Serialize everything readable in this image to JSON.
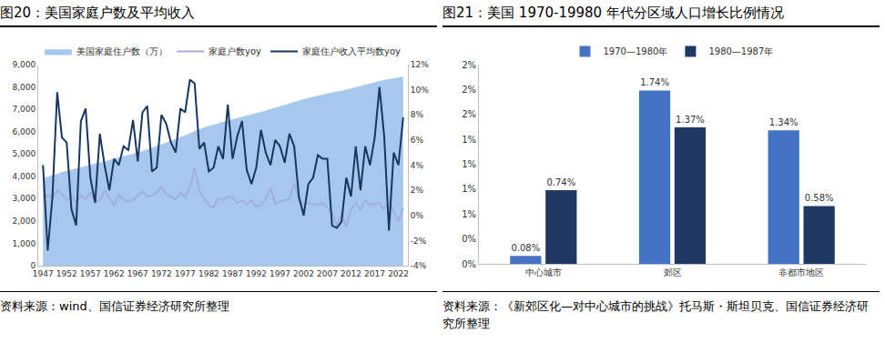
{
  "chart_data": [
    {
      "type": "line",
      "title": "图20：美国家庭户数及平均收入",
      "source": "资料来源：wind、国信证券经济研究所整理",
      "x": [
        1947,
        1948,
        1949,
        1950,
        1951,
        1952,
        1953,
        1954,
        1955,
        1956,
        1957,
        1958,
        1959,
        1960,
        1961,
        1962,
        1963,
        1964,
        1965,
        1966,
        1967,
        1968,
        1969,
        1970,
        1971,
        1972,
        1973,
        1974,
        1975,
        1976,
        1977,
        1978,
        1979,
        1980,
        1981,
        1982,
        1983,
        1984,
        1985,
        1986,
        1987,
        1988,
        1989,
        1990,
        1991,
        1992,
        1993,
        1994,
        1995,
        1996,
        1997,
        1998,
        1999,
        2000,
        2001,
        2002,
        2003,
        2004,
        2005,
        2006,
        2007,
        2008,
        2009,
        2010,
        2011,
        2012,
        2013,
        2014,
        2015,
        2016,
        2017,
        2018,
        2019,
        2020,
        2021,
        2022,
        2023
      ],
      "series": [
        {
          "name": "美国家庭住户数（万）",
          "type": "area",
          "color": "#a6c8ec",
          "axis": "y",
          "values": [
            3900,
            3960,
            4020,
            4100,
            4180,
            4230,
            4280,
            4330,
            4390,
            4450,
            4500,
            4550,
            4600,
            4660,
            4720,
            4770,
            4830,
            4880,
            4930,
            4990,
            5050,
            5120,
            5190,
            5260,
            5340,
            5420,
            5500,
            5580,
            5660,
            5740,
            5820,
            5920,
            6020,
            6110,
            6180,
            6240,
            6290,
            6360,
            6430,
            6490,
            6550,
            6610,
            6670,
            6720,
            6770,
            6820,
            6870,
            6930,
            6990,
            7050,
            7110,
            7170,
            7230,
            7300,
            7370,
            7440,
            7500,
            7550,
            7600,
            7660,
            7720,
            7760,
            7790,
            7820,
            7860,
            7920,
            7980,
            8040,
            8100,
            8160,
            8210,
            8260,
            8310,
            8340,
            8380,
            8420,
            8450
          ]
        },
        {
          "name": "家庭户数yoy",
          "type": "line",
          "color": "#a3aee0",
          "axis": "y2",
          "values": [
            1.5,
            1.6,
            1.4,
            2.0,
            1.7,
            1.2,
            1.5,
            1.0,
            1.6,
            1.3,
            1.8,
            1.1,
            1.2,
            2.0,
            1.4,
            0.8,
            1.6,
            1.3,
            1.1,
            1.2,
            1.6,
            1.9,
            1.5,
            1.6,
            1.8,
            2.3,
            1.7,
            1.5,
            1.3,
            1.8,
            1.5,
            2.2,
            3.8,
            2.0,
            1.3,
            0.8,
            0.6,
            1.4,
            1.2,
            1.5,
            1.4,
            1.0,
            1.2,
            0.9,
            1.2,
            0.7,
            0.8,
            1.3,
            2.2,
            0.9,
            1.1,
            1.2,
            1.3,
            2.6,
            1.2,
            0.9,
            1.0,
            0.9,
            0.8,
            1.0,
            0.6,
            0.3,
            -0.8,
            0.2,
            -0.9,
            0.5,
            1.0,
            0.4,
            1.2,
            0.8,
            0.9,
            1.0,
            0.5,
            1.2,
            0.3,
            -0.5,
            0.6
          ]
        },
        {
          "name": "家庭住户收入平均数yoy",
          "type": "line",
          "color": "#17375e",
          "axis": "y2",
          "values": [
            4.0,
            -2.8,
            1.5,
            9.8,
            6.2,
            5.8,
            0.5,
            -0.8,
            7.5,
            8.5,
            3.0,
            1.0,
            6.5,
            4.0,
            2.0,
            4.5,
            4.0,
            5.5,
            5.2,
            7.6,
            4.3,
            8.2,
            8.7,
            3.5,
            3.8,
            8.0,
            7.3,
            5.8,
            5.0,
            8.5,
            8.2,
            10.8,
            10.5,
            5.3,
            5.8,
            3.5,
            3.8,
            5.5,
            4.5,
            8.8,
            4.5,
            6.3,
            7.5,
            3.6,
            2.5,
            3.8,
            6.8,
            5.0,
            4.0,
            6.0,
            5.5,
            4.2,
            6.5,
            5.5,
            1.5,
            0.0,
            2.5,
            3.0,
            4.8,
            4.5,
            4.5,
            -0.8,
            -1.0,
            -0.5,
            3.0,
            1.5,
            5.5,
            2.0,
            5.5,
            4.0,
            6.2,
            10.2,
            6.3,
            -1.2,
            5.0,
            4.0,
            7.8
          ]
        }
      ],
      "xlim": [
        1946,
        2024
      ],
      "xticks": [
        1947,
        1952,
        1957,
        1962,
        1967,
        1972,
        1977,
        1982,
        1987,
        1992,
        1997,
        2002,
        2007,
        2012,
        2017,
        2022
      ],
      "ylim": [
        0,
        9000
      ],
      "yticks": [
        0,
        {
          "value": 1000,
          "label": "1,000"
        },
        {
          "value": 2000,
          "label": "2,000"
        },
        {
          "value": 3000,
          "label": "3,000"
        },
        {
          "value": 4000,
          "label": "4,000"
        },
        {
          "value": 5000,
          "label": "5,000"
        },
        {
          "value": 6000,
          "label": "6,000"
        },
        {
          "value": 7000,
          "label": "7,000"
        },
        {
          "value": 8000,
          "label": "8,000"
        },
        {
          "value": 9000,
          "label": "9,000"
        }
      ],
      "y2lim": [
        -4,
        12
      ],
      "y2ticks": [
        {
          "value": -4,
          "label": "-4%"
        },
        {
          "value": -2,
          "label": "-2%"
        },
        {
          "value": 0,
          "label": "0%"
        },
        {
          "value": 2,
          "label": "2%"
        },
        {
          "value": 4,
          "label": "4%"
        },
        {
          "value": 6,
          "label": "6%"
        },
        {
          "value": 8,
          "label": "8%"
        },
        {
          "value": 10,
          "label": "10%"
        },
        {
          "value": 12,
          "label": "12%"
        }
      ],
      "grid": false,
      "legend": "top"
    },
    {
      "type": "bar",
      "title": "图21：美国 1970-19980 年代分区域人口增长比例情况",
      "source": "资料来源：《新郊区化—对中心城市的挑战》托马斯・斯坦贝克、国信证券经济研究所整理",
      "categories": [
        "中心城市",
        "郊区",
        "非都市地区"
      ],
      "series": [
        {
          "name": "1970—1980年",
          "color": "#4472c4",
          "values": [
            0.08,
            1.74,
            1.34
          ],
          "value_labels": [
            "0.08%",
            "1.74%",
            "1.34%"
          ]
        },
        {
          "name": "1980—1987年",
          "color": "#1f3864",
          "values": [
            0.74,
            1.37,
            0.58
          ],
          "value_labels": [
            "0.74%",
            "1.37%",
            "0.58%"
          ]
        }
      ],
      "ylim": [
        0,
        2
      ],
      "yticks": [
        {
          "value": 0,
          "label": "0%"
        },
        {
          "value": 0.25,
          "label": "0%"
        },
        {
          "value": 0.5,
          "label": "1%"
        },
        {
          "value": 0.75,
          "label": "1%"
        },
        {
          "value": 1,
          "label": "1%"
        },
        {
          "value": 1.25,
          "label": "1%"
        },
        {
          "value": 1.5,
          "label": "2%"
        },
        {
          "value": 1.75,
          "label": "2%"
        },
        {
          "value": 2,
          "label": "2%"
        }
      ],
      "data_labels": true,
      "grid": false,
      "legend": "top"
    }
  ]
}
